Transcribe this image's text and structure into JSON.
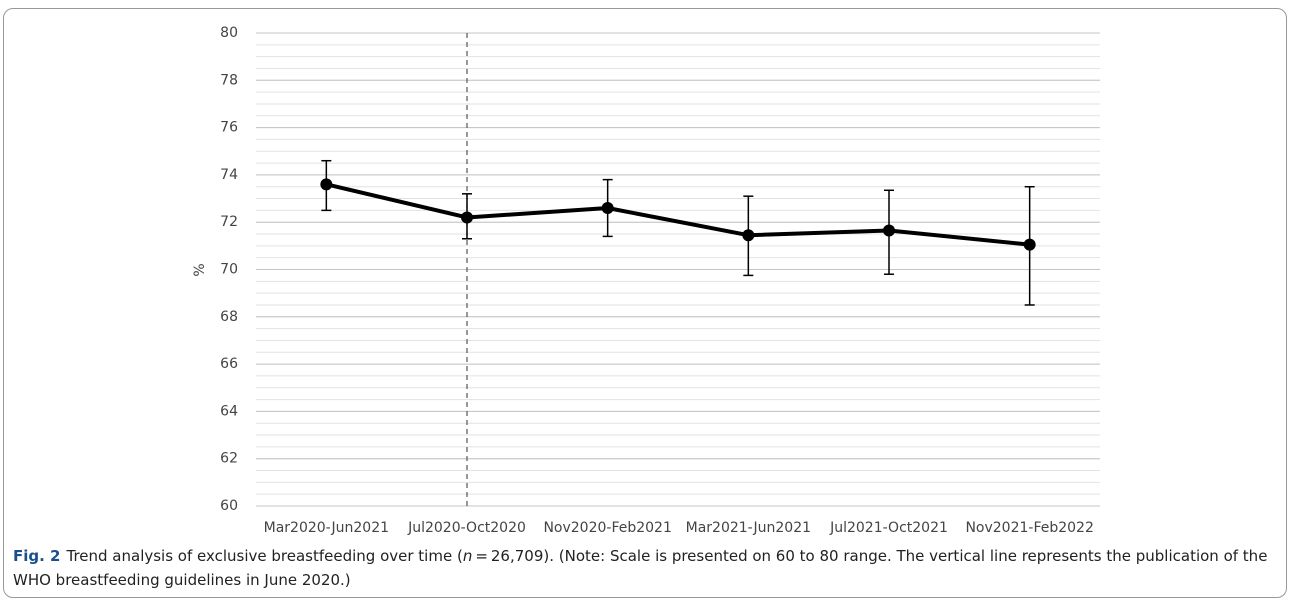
{
  "chart_data": {
    "type": "line",
    "y_label": "%",
    "categories": [
      "Mar2020-Jun2021",
      "Jul2020-Oct2020",
      "Nov2020-Feb2021",
      "Mar2021-Jun2021",
      "Jul2021-Oct2021",
      "Nov2021-Feb2022"
    ],
    "values": [
      73.6,
      72.2,
      72.6,
      71.45,
      71.65,
      71.05
    ],
    "lower": [
      72.5,
      71.3,
      71.4,
      69.75,
      69.8,
      68.5
    ],
    "upper": [
      74.6,
      73.2,
      73.8,
      73.1,
      73.35,
      73.5
    ],
    "color": "#000000",
    "ylim": [
      60,
      80
    ],
    "yticks": [
      60,
      62,
      64,
      66,
      68,
      70,
      72,
      74,
      76,
      78,
      80
    ],
    "grid": true,
    "minor_grid_step": 0.5,
    "vline": {
      "category_index": 1,
      "style": "dashed"
    }
  },
  "caption": {
    "label": "Fig. 2",
    "text_before": "Trend analysis of exclusive breastfeeding over time (",
    "italic": "n",
    "text_after": " = 26,709). (Note: Scale is presented on 60 to 80 range. The vertical line represents the publication of the WHO breastfeeding guidelines in June 2020.)"
  }
}
